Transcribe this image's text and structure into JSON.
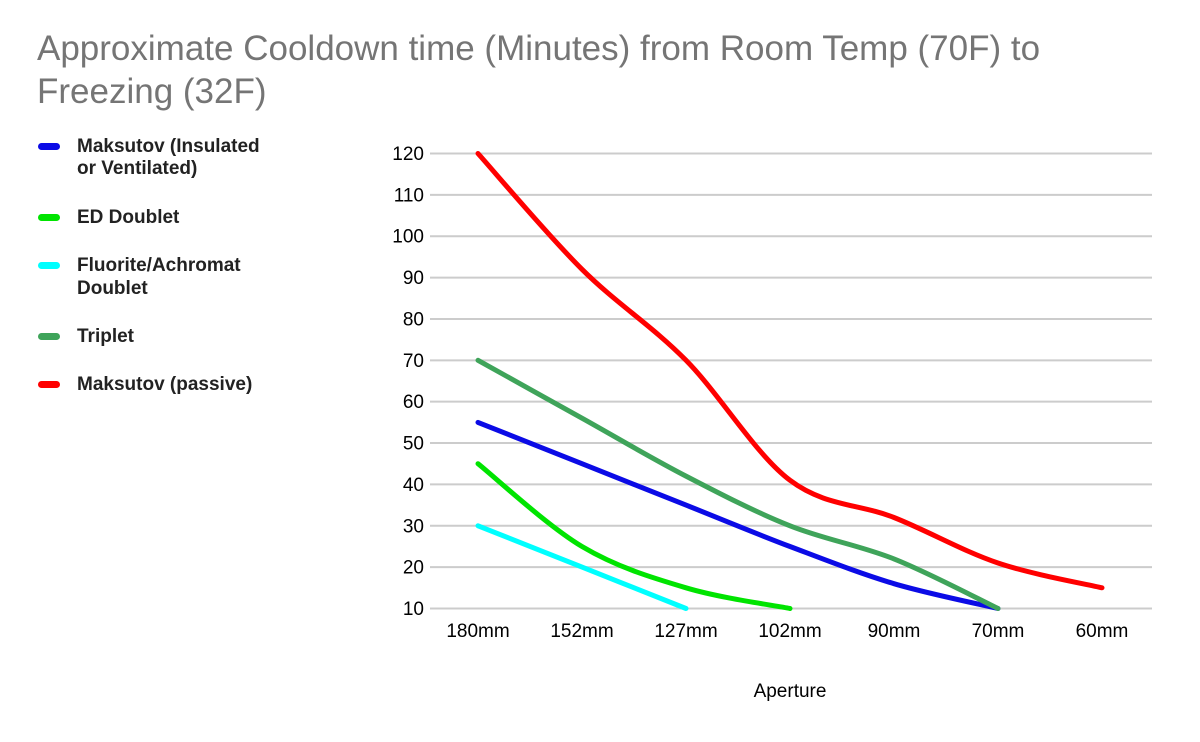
{
  "title": "Approximate Cooldown time (Minutes) from Room Temp (70F) to Freezing (32F)",
  "colors": {
    "title_text": "#757575",
    "gridline": "#cccccc",
    "axis_text": "#000000",
    "legend_text": "#222222"
  },
  "chart_data": {
    "type": "line",
    "smooth": true,
    "grid": true,
    "legend_position": "left",
    "x_categories": [
      "180mm",
      "152mm",
      "127mm",
      "102mm",
      "90mm",
      "70mm",
      "60mm"
    ],
    "xlabel": "Aperture",
    "ylabel": "",
    "ylim": [
      10,
      120
    ],
    "y_ticks": [
      120,
      110,
      100,
      90,
      80,
      70,
      60,
      50,
      40,
      30,
      20,
      10
    ],
    "series": [
      {
        "name": "Maksutov (Insulated or Ventilated)",
        "color": "#0b0be6",
        "values": [
          55,
          45,
          35,
          25,
          16,
          10,
          null
        ]
      },
      {
        "name": "ED Doublet",
        "color": "#00e400",
        "values": [
          45,
          25,
          15,
          10,
          null,
          null,
          null
        ]
      },
      {
        "name": "Fluorite/Achromat Doublet",
        "color": "#00ffff",
        "values": [
          30,
          20,
          10,
          null,
          null,
          null,
          null
        ]
      },
      {
        "name": "Triplet",
        "color": "#3fa45a",
        "values": [
          70,
          56,
          42,
          30,
          22,
          10,
          null
        ]
      },
      {
        "name": "Maksutov (passive)",
        "color": "#ff0000",
        "values": [
          120,
          92,
          70,
          41,
          32,
          21,
          15
        ]
      }
    ]
  }
}
